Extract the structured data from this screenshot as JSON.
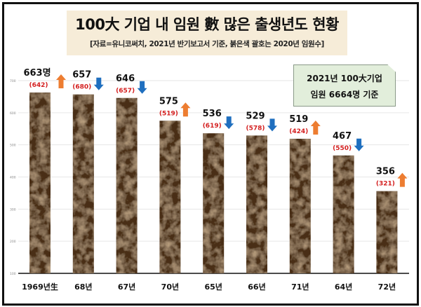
{
  "chart_data": {
    "type": "bar",
    "title": "100大 기업 내 임원 數 많은 출생년도 현황",
    "subtitle": "[자료=유니코써치, 2021년 반기보고서 기준, 붉은색 괄호는 2020년 임원수]",
    "categories": [
      "1969년生",
      "68년",
      "67년",
      "70년",
      "65년",
      "66년",
      "71년",
      "64년",
      "72년"
    ],
    "series": [
      {
        "values": [
          663,
          657,
          646,
          575,
          536,
          529,
          519,
          467,
          356
        ]
      },
      {
        "values": [
          642,
          680,
          657,
          519,
          619,
          578,
          424,
          550,
          321
        ]
      }
    ],
    "value_labels": [
      "663명",
      "657",
      "646",
      "575",
      "536",
      "529",
      "519",
      "467",
      "356"
    ],
    "prev_labels": [
      "(642)",
      "(680)",
      "(657)",
      "(519)",
      "(619)",
      "(578)",
      "(424)",
      "(550)",
      "(321)"
    ],
    "trend": [
      "up",
      "down",
      "down",
      "up",
      "down",
      "down",
      "up",
      "down",
      "up"
    ],
    "yticks": [
      "100",
      "200",
      "300",
      "400",
      "500",
      "600",
      "700"
    ],
    "ylim": [
      100,
      700
    ],
    "grid": true,
    "annotation": {
      "line1": "2021년 100大기업",
      "line2": "임원 6664명 기준"
    },
    "colors": {
      "bar": "#4a2e17",
      "up_arrow": "#ed7d31",
      "down_arrow": "#1f6fbf",
      "prev_label": "#d42020",
      "title_bg": "#f6ecd8",
      "annotation_bg": "#e2eedb"
    }
  }
}
